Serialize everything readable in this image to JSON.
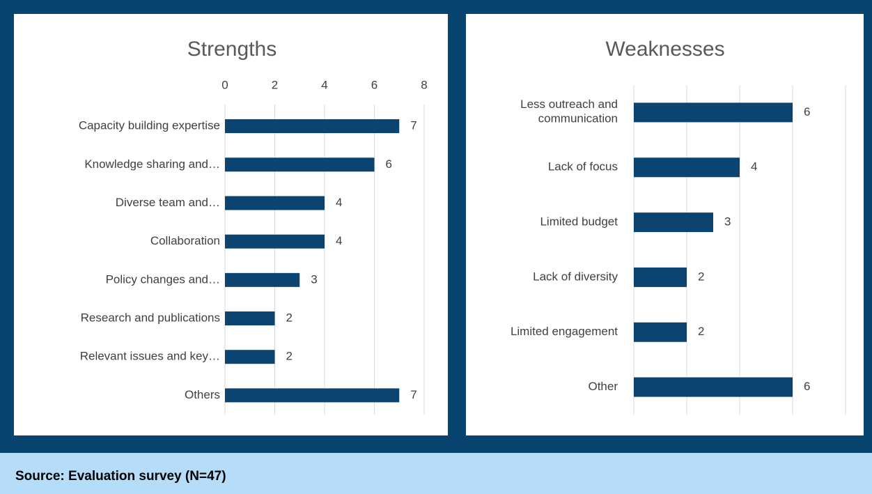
{
  "source": "Source: Evaluation survey (N=47)",
  "chart_data": [
    {
      "type": "bar",
      "orientation": "horizontal",
      "title": "Strengths",
      "categories": [
        "Capacity building expertise",
        "Knowledge sharing and…",
        "Diverse team and…",
        "Collaboration",
        "Policy changes and…",
        "Research and publications",
        "Relevant issues and key…",
        "Others"
      ],
      "values": [
        7,
        6,
        4,
        4,
        3,
        2,
        2,
        7
      ],
      "color": "#0b4470",
      "xlim": [
        0,
        8
      ],
      "xticks": [
        0,
        2,
        4,
        6,
        8
      ],
      "grid": true,
      "tick_labels": true
    },
    {
      "type": "bar",
      "orientation": "horizontal",
      "title": "Weaknesses",
      "categories": [
        "Less outreach and\ncommunication",
        "Lack of focus",
        "Limited budget",
        "Lack of diversity",
        "Limited engagement",
        "Other"
      ],
      "values": [
        6,
        4,
        3,
        2,
        2,
        6
      ],
      "color": "#0b4470",
      "xlim": [
        0,
        8
      ],
      "xticks": [
        0,
        2,
        4,
        6,
        8
      ],
      "grid": true,
      "tick_labels": false
    }
  ]
}
